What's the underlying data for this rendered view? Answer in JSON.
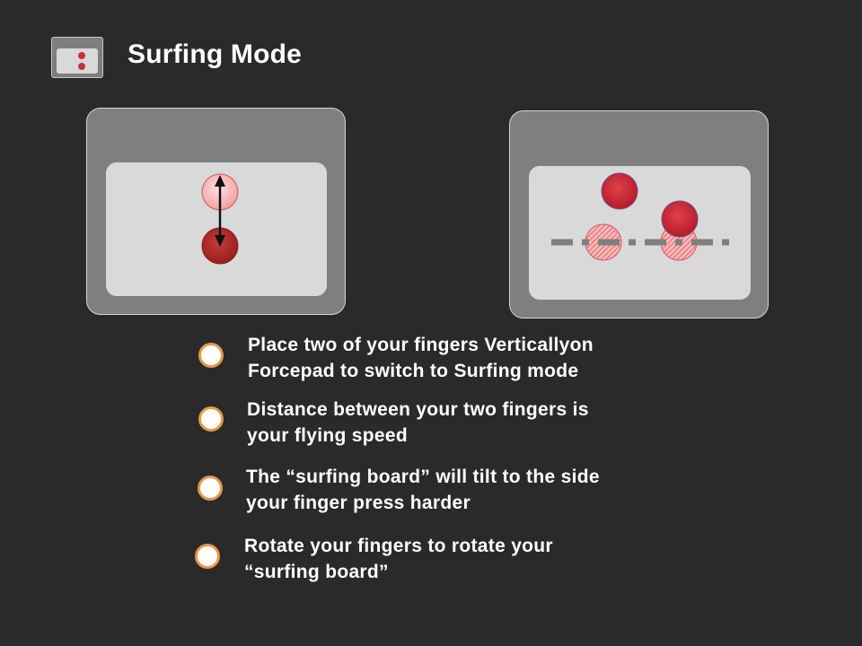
{
  "header": {
    "title": "Surfing Mode",
    "icon": "two-finger-pad-icon"
  },
  "colors": {
    "background": "#2a2a2a",
    "panel": "#7f7f7f",
    "pad": "#d9d9d9",
    "finger": "#c8323a",
    "bullet_ring": "#e8964b"
  },
  "illustrations": [
    {
      "name": "vertical-fingers-illustration",
      "icons": [
        "finger-light-icon",
        "finger-dark-icon",
        "double-arrow-icon"
      ]
    },
    {
      "name": "rotate-fingers-illustration",
      "icons": [
        "finger-icon",
        "finger-icon",
        "finger-shadow-icon",
        "finger-shadow-icon",
        "dashed-axis-line"
      ]
    }
  ],
  "instructions": [
    {
      "line1": "Place two of your fingers Verticallyon",
      "line2": "Forcepad to switch to Surfing mode"
    },
    {
      "line1": "Distance between your two fingers is",
      "line2": "your flying speed"
    },
    {
      "line1": "The “surfing board” will tilt to the side",
      "line2": "your finger press harder"
    },
    {
      "line1": "Rotate your fingers to rotate your",
      "line2": "“surfing board”"
    }
  ]
}
